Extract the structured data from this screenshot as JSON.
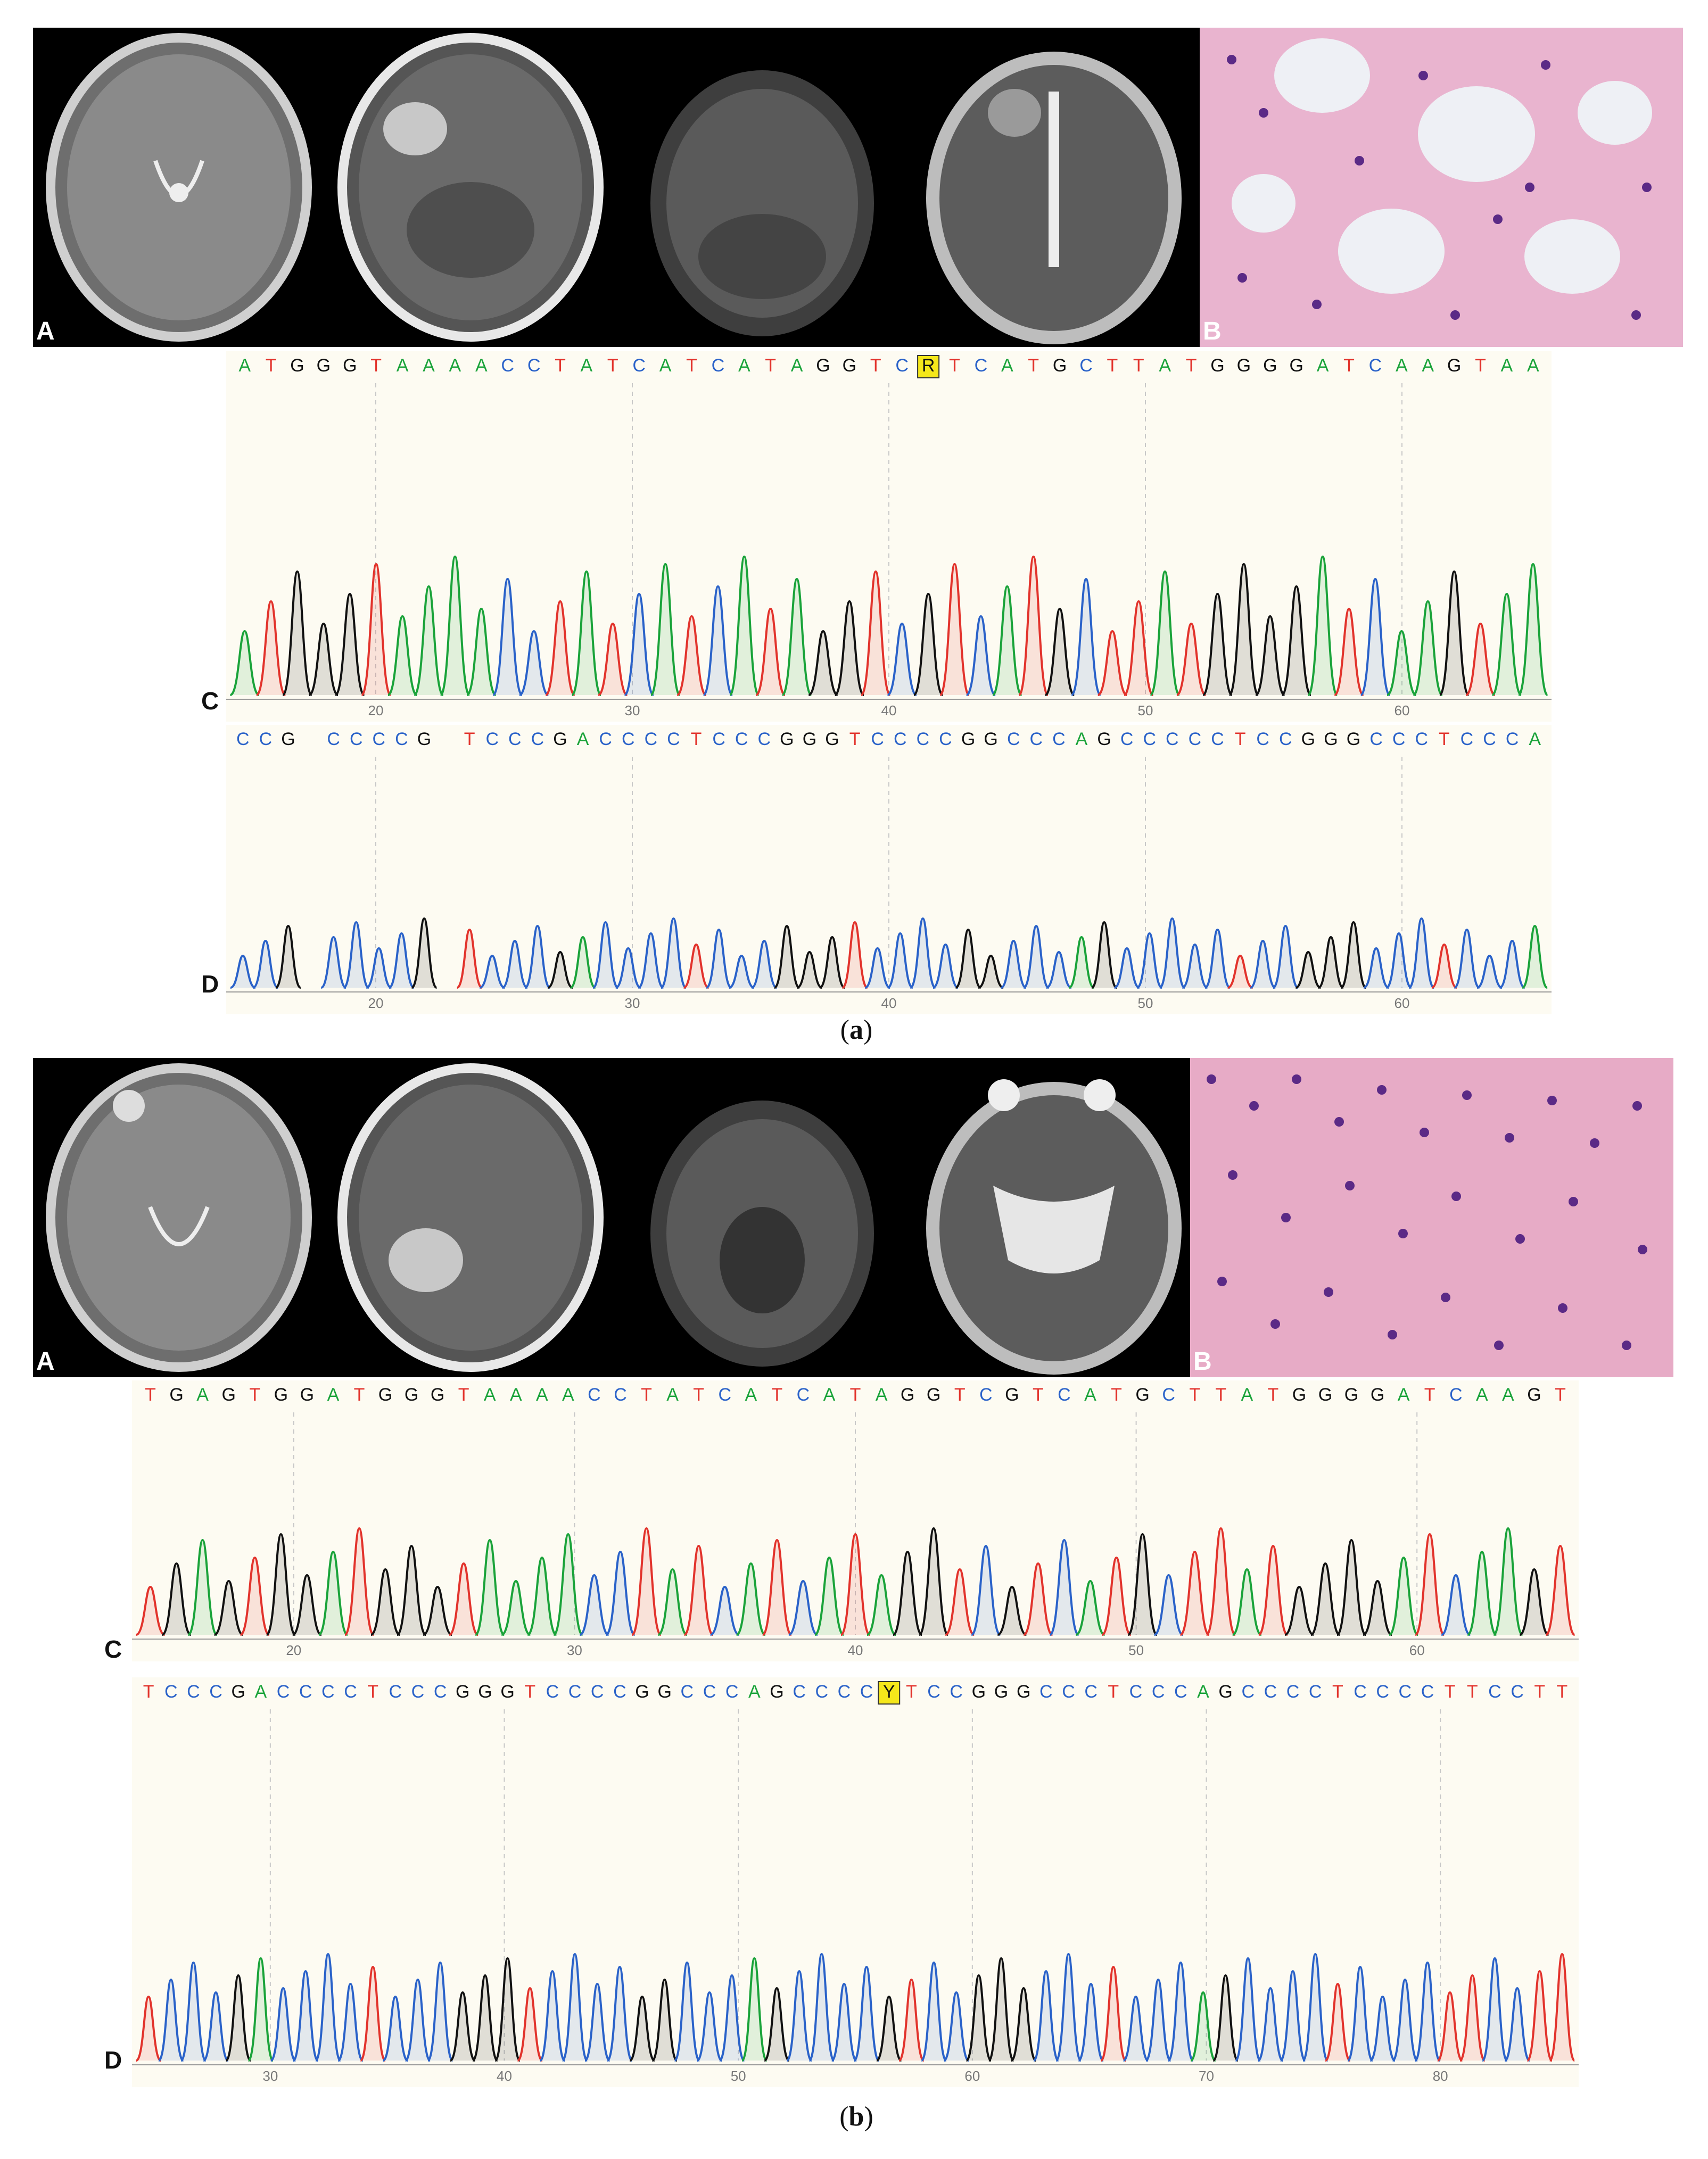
{
  "figure_a": {
    "caption_letter": "a",
    "image_labels": {
      "left": "A",
      "right": "B"
    },
    "trace_c": {
      "label": "C",
      "sequence": "ATGGGTAAAACCTATCATCATAGGTCRTCATGCTTATGGGGATCAAGTAA",
      "highlight_base": "R",
      "ticks": [
        "20",
        "30",
        "40",
        "50",
        "60"
      ]
    },
    "trace_d": {
      "label": "D",
      "sequence": "CCG CCCCG TCCCGACCCCTCCCGGGTCCCCGGCCCAGCCCCCTCCGGGCCCTCCCA",
      "ticks": [
        "20",
        "30",
        "40",
        "50",
        "60"
      ]
    }
  },
  "figure_b": {
    "caption_letter": "b",
    "image_labels": {
      "left": "A",
      "right": "B"
    },
    "trace_c": {
      "label": "C",
      "sequence": "TGAGTGGATGGGTAAAACCTATCATCATAGGTCGTCATGCTTATGGGGATCAAGT",
      "ticks": [
        "20",
        "30",
        "40",
        "50",
        "60"
      ]
    },
    "trace_d": {
      "label": "D",
      "sequence": "TCCCGACCCCTCCCGGGTCCCCGGCCCAGCCCCYTCCGGGCCCTCCCAGCCCCTCCCCTTCCTT",
      "highlight_base": "Y",
      "ticks": [
        "30",
        "40",
        "50",
        "60",
        "70",
        "80"
      ]
    }
  },
  "colors": {
    "A": "#1aa33a",
    "C": "#2a62c9",
    "G": "#111111",
    "T": "#e2332c",
    "highlight": "#f5e71b"
  }
}
